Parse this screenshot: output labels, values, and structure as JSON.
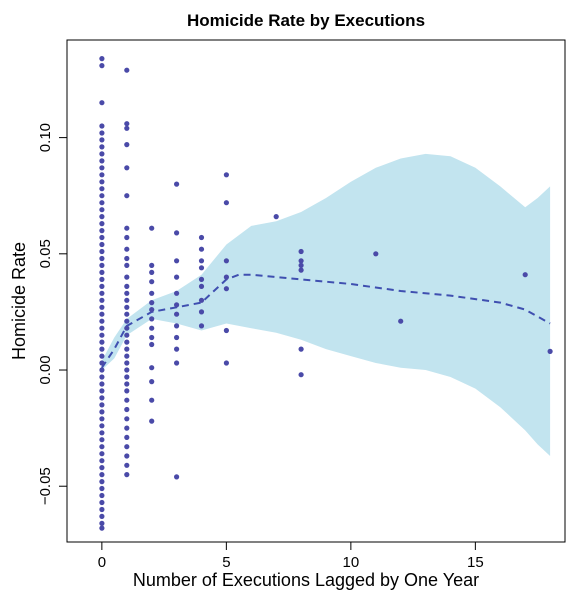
{
  "chart_data": {
    "type": "scatter",
    "title": "Homicide Rate by Executions",
    "xlabel": "Number of Executions Lagged by One Year",
    "ylabel": "Homicide Rate",
    "xlim": [
      -1.4,
      18.6
    ],
    "ylim": [
      -0.074,
      0.142
    ],
    "x_ticks": [
      0,
      5,
      10,
      15
    ],
    "x_tick_labels": [
      "0",
      "5",
      "10",
      "15"
    ],
    "y_ticks": [
      -0.05,
      0.0,
      0.05,
      0.1
    ],
    "y_tick_labels": [
      "−0.05",
      "0.00",
      "0.05",
      "0.10"
    ],
    "grid": false,
    "legend": "none",
    "colors": {
      "points": "#4a4aa8",
      "trend": "#3f4fb0",
      "band": "#c2e4ef",
      "frame": "#000000"
    },
    "points": [
      [
        0,
        0.134
      ],
      [
        0,
        0.131
      ],
      [
        0,
        0.115
      ],
      [
        0,
        0.105
      ],
      [
        0,
        0.102
      ],
      [
        0,
        0.099
      ],
      [
        0,
        0.096
      ],
      [
        0,
        0.093
      ],
      [
        0,
        0.09
      ],
      [
        0,
        0.087
      ],
      [
        0,
        0.084
      ],
      [
        0,
        0.081
      ],
      [
        0,
        0.078
      ],
      [
        0,
        0.075
      ],
      [
        0,
        0.072
      ],
      [
        0,
        0.069
      ],
      [
        0,
        0.066
      ],
      [
        0,
        0.063
      ],
      [
        0,
        0.06
      ],
      [
        0,
        0.057
      ],
      [
        0,
        0.054
      ],
      [
        0,
        0.051
      ],
      [
        0,
        0.048
      ],
      [
        0,
        0.045
      ],
      [
        0,
        0.042
      ],
      [
        0,
        0.039
      ],
      [
        0,
        0.036
      ],
      [
        0,
        0.033
      ],
      [
        0,
        0.03
      ],
      [
        0,
        0.027
      ],
      [
        0,
        0.024
      ],
      [
        0,
        0.021
      ],
      [
        0,
        0.018
      ],
      [
        0,
        0.015
      ],
      [
        0,
        0.012
      ],
      [
        0,
        0.009
      ],
      [
        0,
        0.006
      ],
      [
        0,
        0.003
      ],
      [
        0,
        0.0
      ],
      [
        0,
        -0.003
      ],
      [
        0,
        -0.006
      ],
      [
        0,
        -0.009
      ],
      [
        0,
        -0.012
      ],
      [
        0,
        -0.015
      ],
      [
        0,
        -0.018
      ],
      [
        0,
        -0.021
      ],
      [
        0,
        -0.024
      ],
      [
        0,
        -0.027
      ],
      [
        0,
        -0.03
      ],
      [
        0,
        -0.033
      ],
      [
        0,
        -0.036
      ],
      [
        0,
        -0.039
      ],
      [
        0,
        -0.042
      ],
      [
        0,
        -0.045
      ],
      [
        0,
        -0.048
      ],
      [
        0,
        -0.051
      ],
      [
        0,
        -0.054
      ],
      [
        0,
        -0.057
      ],
      [
        0,
        -0.06
      ],
      [
        0,
        -0.063
      ],
      [
        0,
        -0.066
      ],
      [
        0,
        -0.068
      ],
      [
        1,
        0.129
      ],
      [
        1,
        0.106
      ],
      [
        1,
        0.104
      ],
      [
        1,
        0.097
      ],
      [
        1,
        0.087
      ],
      [
        1,
        0.075
      ],
      [
        1,
        0.061
      ],
      [
        1,
        0.057
      ],
      [
        1,
        0.052
      ],
      [
        1,
        0.048
      ],
      [
        1,
        0.045
      ],
      [
        1,
        0.04
      ],
      [
        1,
        0.036
      ],
      [
        1,
        0.033
      ],
      [
        1,
        0.03
      ],
      [
        1,
        0.027
      ],
      [
        1,
        0.024
      ],
      [
        1,
        0.021
      ],
      [
        1,
        0.018
      ],
      [
        1,
        0.015
      ],
      [
        1,
        0.012
      ],
      [
        1,
        0.009
      ],
      [
        1,
        0.006
      ],
      [
        1,
        0.003
      ],
      [
        1,
        0.0
      ],
      [
        1,
        -0.003
      ],
      [
        1,
        -0.006
      ],
      [
        1,
        -0.009
      ],
      [
        1,
        -0.013
      ],
      [
        1,
        -0.017
      ],
      [
        1,
        -0.021
      ],
      [
        1,
        -0.025
      ],
      [
        1,
        -0.029
      ],
      [
        1,
        -0.033
      ],
      [
        1,
        -0.037
      ],
      [
        1,
        -0.041
      ],
      [
        1,
        -0.045
      ],
      [
        2,
        0.061
      ],
      [
        2,
        0.045
      ],
      [
        2,
        0.042
      ],
      [
        2,
        0.038
      ],
      [
        2,
        0.033
      ],
      [
        2,
        0.029
      ],
      [
        2,
        0.026
      ],
      [
        2,
        0.022
      ],
      [
        2,
        0.018
      ],
      [
        2,
        0.014
      ],
      [
        2,
        0.011
      ],
      [
        2,
        0.001
      ],
      [
        2,
        -0.005
      ],
      [
        2,
        -0.013
      ],
      [
        2,
        -0.022
      ],
      [
        3,
        0.08
      ],
      [
        3,
        0.059
      ],
      [
        3,
        0.047
      ],
      [
        3,
        0.04
      ],
      [
        3,
        0.033
      ],
      [
        3,
        0.028
      ],
      [
        3,
        0.024
      ],
      [
        3,
        0.019
      ],
      [
        3,
        0.014
      ],
      [
        3,
        0.009
      ],
      [
        3,
        0.003
      ],
      [
        3,
        -0.046
      ],
      [
        4,
        0.057
      ],
      [
        4,
        0.052
      ],
      [
        4,
        0.047
      ],
      [
        4,
        0.044
      ],
      [
        4,
        0.039
      ],
      [
        4,
        0.036
      ],
      [
        4,
        0.03
      ],
      [
        4,
        0.025
      ],
      [
        4,
        0.019
      ],
      [
        5,
        0.084
      ],
      [
        5,
        0.072
      ],
      [
        5,
        0.047
      ],
      [
        5,
        0.04
      ],
      [
        5,
        0.035
      ],
      [
        5,
        0.017
      ],
      [
        5,
        0.003
      ],
      [
        7,
        0.066
      ],
      [
        8,
        0.051
      ],
      [
        8,
        0.047
      ],
      [
        8,
        0.045
      ],
      [
        8,
        0.043
      ],
      [
        8,
        0.009
      ],
      [
        8,
        -0.002
      ],
      [
        11,
        0.05
      ],
      [
        12,
        0.021
      ],
      [
        17,
        0.041
      ],
      [
        18,
        0.008
      ]
    ],
    "trend_line": {
      "style": "dashed",
      "x": [
        0,
        0.5,
        1,
        2,
        3,
        4,
        4.5,
        5,
        5.5,
        6,
        7,
        8,
        10,
        12,
        14,
        16,
        17,
        18
      ],
      "y": [
        0.001,
        0.009,
        0.019,
        0.025,
        0.027,
        0.029,
        0.034,
        0.039,
        0.041,
        0.041,
        0.04,
        0.039,
        0.037,
        0.034,
        0.032,
        0.029,
        0.026,
        0.02
      ]
    },
    "confidence_band": {
      "x": [
        0,
        0.5,
        1,
        2,
        3,
        4,
        5,
        6,
        7,
        8,
        9,
        10,
        11,
        12,
        13,
        14,
        15,
        16,
        17,
        17.5,
        18
      ],
      "upper": [
        0.004,
        0.014,
        0.022,
        0.03,
        0.034,
        0.041,
        0.054,
        0.062,
        0.064,
        0.068,
        0.074,
        0.081,
        0.087,
        0.091,
        0.093,
        0.092,
        0.087,
        0.079,
        0.07,
        0.074,
        0.079
      ],
      "lower": [
        0.0,
        0.005,
        0.015,
        0.022,
        0.02,
        0.017,
        0.02,
        0.018,
        0.016,
        0.013,
        0.009,
        0.006,
        0.003,
        0.001,
        0.0,
        -0.003,
        -0.008,
        -0.016,
        -0.026,
        -0.032,
        -0.037
      ]
    }
  }
}
